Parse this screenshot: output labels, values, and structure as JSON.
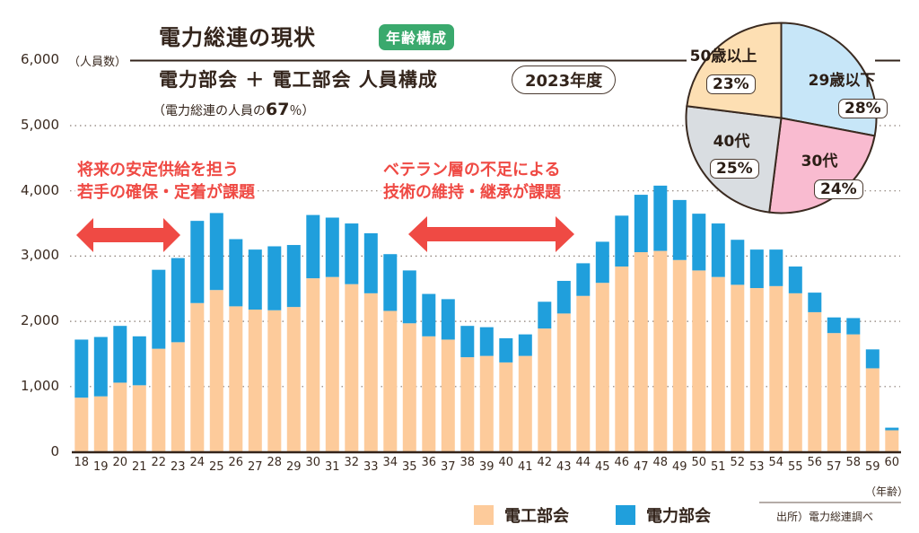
{
  "header": {
    "title": "電力総連の現状",
    "badge": "年齢構成",
    "subtitle": "電力部会 ＋ 電工部会  人員構成",
    "year_pill": "2023年度",
    "share_prefix": "（電力総連の人員の",
    "share_value": "67",
    "share_suffix": "％）"
  },
  "annotations": [
    {
      "lines": [
        "将来の安定供給を担う",
        "若手の確保・定着が課題"
      ],
      "arrow_icon": "double-arrow-icon",
      "color": "#ef4a44"
    },
    {
      "lines": [
        "ベテラン層の不足による",
        "技術の維持・継承が課題"
      ],
      "arrow_icon": "double-arrow-icon",
      "color": "#ef4a44"
    }
  ],
  "legend": [
    {
      "label": "電工部会",
      "color": "#fdcb9b"
    },
    {
      "label": "電力部会",
      "color": "#209fdc"
    }
  ],
  "source": "出所）電力総連調べ",
  "chart_data": [
    {
      "type": "bar",
      "stacked": true,
      "title": "電力部会 ＋ 電工部会 人員構成 2023年度",
      "xlabel": "（年齢）",
      "ylabel": "（人員数）",
      "ylim": [
        0,
        6000
      ],
      "yticks": [
        0,
        1000,
        2000,
        3000,
        4000,
        5000,
        6000
      ],
      "ytick_labels": [
        "0",
        "1,000",
        "2,000",
        "3,000",
        "4,000",
        "5,000",
        "6,000"
      ],
      "grid": true,
      "legend_position": "bottom-right",
      "categories": [
        "18",
        "19",
        "20",
        "21",
        "22",
        "23",
        "24",
        "25",
        "26",
        "27",
        "28",
        "29",
        "30",
        "31",
        "32",
        "33",
        "34",
        "35",
        "36",
        "37",
        "38",
        "39",
        "40",
        "41",
        "42",
        "43",
        "44",
        "45",
        "46",
        "47",
        "48",
        "49",
        "50",
        "51",
        "52",
        "53",
        "54",
        "55",
        "56",
        "57",
        "58",
        "59",
        "60"
      ],
      "series": [
        {
          "name": "電工部会",
          "color": "#fdcb9b",
          "values": [
            830,
            850,
            1060,
            1020,
            1580,
            1680,
            2280,
            2480,
            2230,
            2180,
            2170,
            2220,
            2660,
            2680,
            2570,
            2430,
            2160,
            1970,
            1770,
            1720,
            1450,
            1470,
            1370,
            1470,
            1890,
            2120,
            2390,
            2590,
            2840,
            3060,
            3080,
            2940,
            2780,
            2680,
            2560,
            2510,
            2540,
            2430,
            2140,
            1820,
            1800,
            1280,
            330
          ]
        },
        {
          "name": "電力部会",
          "color": "#209fdc",
          "values": [
            890,
            910,
            870,
            750,
            1210,
            1290,
            1260,
            1180,
            1030,
            920,
            980,
            950,
            970,
            910,
            930,
            920,
            870,
            810,
            650,
            620,
            480,
            440,
            370,
            330,
            410,
            500,
            500,
            630,
            780,
            880,
            1000,
            920,
            870,
            820,
            690,
            590,
            560,
            410,
            300,
            240,
            250,
            290,
            40
          ]
        }
      ]
    },
    {
      "type": "pie",
      "title": "年齢構成",
      "slices": [
        {
          "label": "29歳以下",
          "value": 28,
          "pct_label": "28%",
          "color": "#c7e6f8"
        },
        {
          "label": "30代",
          "value": 24,
          "pct_label": "24%",
          "color": "#f9bbd0"
        },
        {
          "label": "40代",
          "value": 25,
          "pct_label": "25%",
          "color": "#d9dde1"
        },
        {
          "label": "50歳以上",
          "value": 23,
          "pct_label": "23%",
          "color": "#fddfb3"
        }
      ]
    }
  ]
}
